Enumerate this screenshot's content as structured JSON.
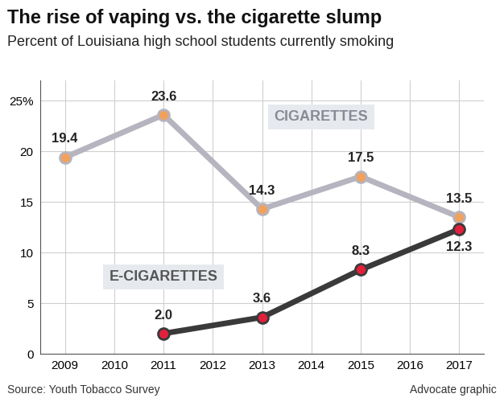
{
  "chart_data": {
    "type": "line",
    "title": "The rise of vaping vs. the cigarette slump",
    "subtitle": "Percent of Louisiana high school students currently smoking",
    "source": "Source: Youth Tobacco Survey",
    "credit": "Advocate graphic",
    "x": [
      2009,
      2011,
      2013,
      2015,
      2017
    ],
    "series": [
      {
        "name": "CIGARETTES",
        "color": "#b5b4bf",
        "marker_color": "#f2a15c",
        "values": [
          19.4,
          23.6,
          14.3,
          17.5,
          13.5
        ],
        "value_labels": [
          "19.4",
          "23.6",
          "14.3",
          "17.5",
          "13.5"
        ]
      },
      {
        "name": "E-CIGARETTES",
        "color": "#3a3a3a",
        "marker_color": "#e3203b",
        "values": [
          null,
          2.0,
          3.6,
          8.3,
          12.3
        ],
        "value_labels": [
          null,
          "2.0",
          "3.6",
          "8.3",
          "12.3"
        ]
      }
    ],
    "marker": "o",
    "line_style": "solid",
    "xlim": [
      2008.5,
      2017.5
    ],
    "xticks": [
      2009,
      2010,
      2011,
      2012,
      2013,
      2014,
      2015,
      2016,
      2017
    ],
    "ylim": [
      0,
      27
    ],
    "yticks": [
      0,
      5,
      10,
      15,
      20,
      {
        "value": 25,
        "label": "25%"
      }
    ],
    "grid": true,
    "data_labels": true
  }
}
